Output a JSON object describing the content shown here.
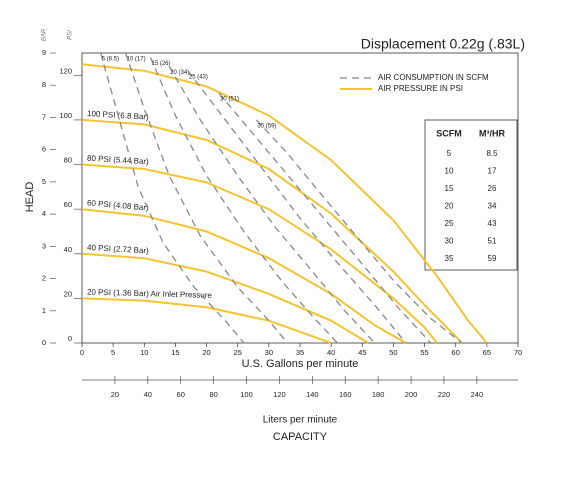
{
  "chart_data": {
    "type": "line",
    "title": "Displacement 0.22g (.83L)",
    "x_label": "U.S. Gallons per minute",
    "x2_label": "Liters per minute",
    "x_title": "CAPACITY",
    "y_label": "HEAD",
    "y_unit": "PSI",
    "y2_unit": "BAR",
    "xlim": [
      0,
      70
    ],
    "xticks": [
      0,
      5,
      10,
      15,
      20,
      25,
      30,
      35,
      40,
      45,
      50,
      55,
      60,
      65,
      70
    ],
    "x2lim": [
      0,
      265
    ],
    "x2ticks": [
      20,
      40,
      60,
      80,
      100,
      120,
      140,
      160,
      180,
      200,
      220,
      240
    ],
    "ylim": [
      0,
      130
    ],
    "yticks": [
      0,
      20,
      40,
      60,
      80,
      100,
      120
    ],
    "y2lim": [
      0,
      9
    ],
    "y2ticks": [
      0,
      1,
      2,
      3,
      4,
      5,
      6,
      7,
      8,
      9
    ],
    "legend": {
      "position": "upper right",
      "entries": [
        {
          "label": "AIR CONSUMPTION IN SCFM",
          "color": "#888888",
          "dash": true
        },
        {
          "label": "AIR PRESSURE IN PSI",
          "color": "#f4c430",
          "dash": false
        }
      ]
    },
    "series": [
      {
        "color": "#f4c430",
        "dash": false,
        "x": [
          0,
          10,
          20,
          30,
          40,
          50,
          57,
          62,
          65
        ],
        "values": [
          125,
          122,
          115,
          102,
          82,
          55,
          30,
          10,
          0
        ]
      },
      {
        "name": "100 PSI (6.8 Bar)",
        "color": "#f4c430",
        "dash": false,
        "x": [
          0,
          10,
          20,
          30,
          40,
          50,
          55,
          60,
          61
        ],
        "values": [
          100,
          98,
          91,
          78,
          58,
          32,
          17,
          3,
          0
        ]
      },
      {
        "name": "80 PSI (5.44 Bar)",
        "color": "#f4c430",
        "dash": false,
        "x": [
          0,
          10,
          20,
          30,
          40,
          50,
          55,
          57
        ],
        "values": [
          80,
          78,
          72,
          60,
          42,
          20,
          7,
          0
        ]
      },
      {
        "name": "60 PSI (4.08 Bar)",
        "color": "#f4c430",
        "dash": false,
        "x": [
          0,
          10,
          20,
          30,
          40,
          47,
          52
        ],
        "values": [
          60,
          57,
          50,
          38,
          22,
          8,
          0
        ]
      },
      {
        "name": "40 PSI (2.72 Bar)",
        "color": "#f4c430",
        "dash": false,
        "x": [
          0,
          10,
          20,
          30,
          40,
          46
        ],
        "values": [
          40,
          38,
          32,
          22,
          10,
          0
        ]
      },
      {
        "name": "20 PSI (1.36 Bar) Air Inlet Pressure",
        "color": "#f4c430",
        "dash": false,
        "x": [
          0,
          10,
          20,
          30,
          35,
          40
        ],
        "values": [
          20,
          19,
          16,
          10,
          5,
          0
        ]
      },
      {
        "name": "5 (8.5)",
        "color": "#888888",
        "dash": true,
        "x": [
          3,
          6,
          9,
          13,
          18,
          23,
          26
        ],
        "values": [
          130,
          100,
          70,
          45,
          25,
          10,
          0
        ]
      },
      {
        "name": "10 (17)",
        "color": "#888888",
        "dash": true,
        "x": [
          7,
          10,
          14,
          19,
          25,
          30,
          33
        ],
        "values": [
          130,
          105,
          75,
          48,
          25,
          10,
          0
        ]
      },
      {
        "name": "15 (26)",
        "color": "#888888",
        "dash": true,
        "x": [
          11,
          15,
          20,
          26,
          32,
          37,
          41
        ],
        "values": [
          128,
          102,
          75,
          50,
          28,
          12,
          0
        ]
      },
      {
        "name": "20 (34)",
        "color": "#888888",
        "dash": true,
        "x": [
          14,
          19,
          25,
          31,
          37,
          42,
          47
        ],
        "values": [
          124,
          100,
          75,
          52,
          32,
          15,
          0
        ]
      },
      {
        "name": "25 (43)",
        "color": "#888888",
        "dash": true,
        "x": [
          17,
          23,
          29,
          35,
          41,
          47,
          52
        ],
        "values": [
          122,
          100,
          78,
          56,
          36,
          17,
          0
        ]
      },
      {
        "name": "30 (51)",
        "color": "#888888",
        "dash": true,
        "x": [
          22,
          28,
          34,
          40,
          46,
          51,
          56
        ],
        "values": [
          112,
          92,
          72,
          52,
          32,
          15,
          0
        ]
      },
      {
        "name": "35 (59)",
        "color": "#888888",
        "dash": true,
        "x": [
          28,
          33,
          38,
          44,
          50,
          56,
          61
        ],
        "values": [
          100,
          85,
          68,
          48,
          28,
          11,
          0
        ]
      }
    ],
    "table": {
      "columns": [
        "SCFM",
        "M³/HR"
      ],
      "rows": [
        [
          5,
          8.5
        ],
        [
          10,
          17
        ],
        [
          15,
          26
        ],
        [
          20,
          34
        ],
        [
          25,
          43
        ],
        [
          30,
          51
        ],
        [
          35,
          59
        ]
      ]
    }
  }
}
